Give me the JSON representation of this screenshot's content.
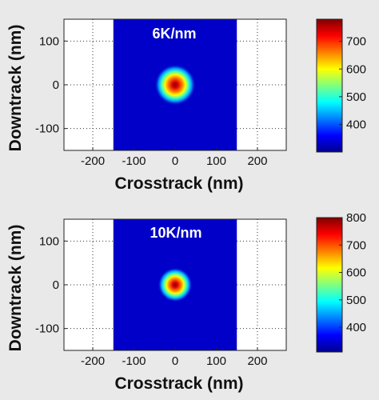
{
  "chart_data": [
    {
      "type": "heatmap",
      "annotation": "6K/nm",
      "xlabel": "Crosstrack (nm)",
      "ylabel": "Downtrack (nm)",
      "xlim": [
        -270,
        270
      ],
      "ylim": [
        -150,
        150
      ],
      "x_ticks": [
        "-200",
        "-100",
        "0",
        "100",
        "200"
      ],
      "y_ticks": [
        "100",
        "0",
        "-100"
      ],
      "grid": true,
      "colorbar": {
        "min": 300,
        "max": 780,
        "ticks": [
          "700",
          "600",
          "500",
          "400"
        ]
      },
      "field": {
        "region_x": [
          -150,
          150
        ],
        "region_y": [
          -150,
          150
        ],
        "background": 300,
        "peak": 780,
        "center": [
          0,
          0
        ],
        "spot_radius": 50
      }
    },
    {
      "type": "heatmap",
      "annotation": "10K/nm",
      "xlabel": "Crosstrack (nm)",
      "ylabel": "Downtrack (nm)",
      "xlim": [
        -270,
        270
      ],
      "ylim": [
        -150,
        150
      ],
      "x_ticks": [
        "-200",
        "-100",
        "0",
        "100",
        "200"
      ],
      "y_ticks": [
        "100",
        "0",
        "-100"
      ],
      "grid": true,
      "colorbar": {
        "min": 310,
        "max": 800,
        "ticks": [
          "800",
          "700",
          "600",
          "500",
          "400"
        ]
      },
      "field": {
        "region_x": [
          -150,
          150
        ],
        "region_y": [
          -150,
          150
        ],
        "background": 310,
        "peak": 800,
        "center": [
          0,
          0
        ],
        "spot_radius": 42
      }
    }
  ]
}
